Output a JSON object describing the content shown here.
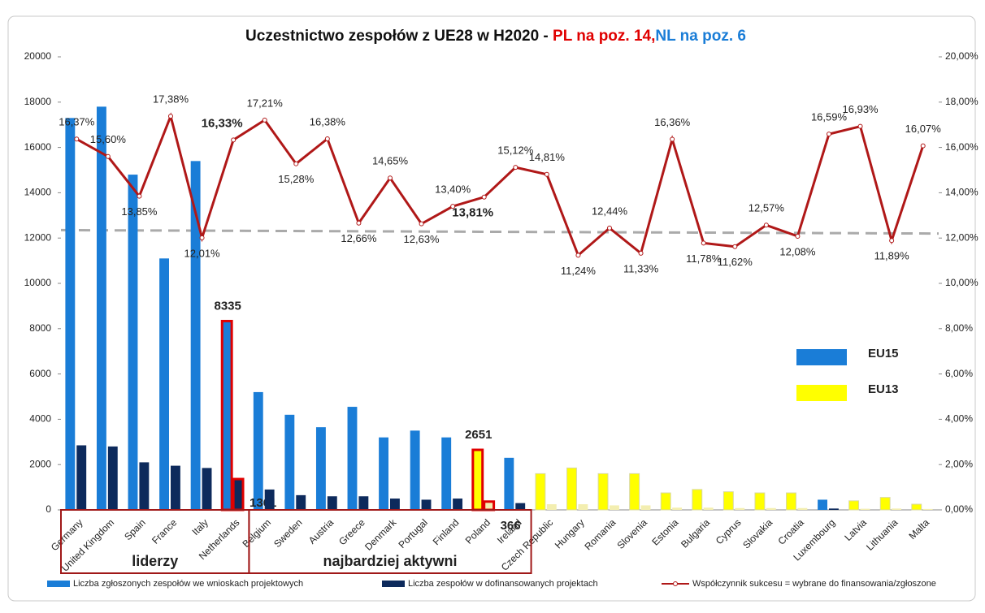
{
  "chart_data": {
    "type": "combo",
    "title": [
      {
        "text": "Uczestnictwo zespołów z UE28 w H2020 - ",
        "color": "#111111"
      },
      {
        "text": "PL na poz. 14,",
        "color": "#e00000"
      },
      {
        "text": "NL na poz. 6",
        "color": "#1a7dd7"
      }
    ],
    "categories": [
      "Germany",
      "United Kingdom",
      "Spain",
      "France",
      "Italy",
      "Netherlands",
      "Belgium",
      "Sweden",
      "Austria",
      "Greece",
      "Denmark",
      "Portugal",
      "Finland",
      "Poland",
      "Ireland",
      "Czech Republic",
      "Hungary",
      "Romania",
      "Slovenia",
      "Estonia",
      "Bulgaria",
      "Cyprus",
      "Slovakia",
      "Croatia",
      "Luxembourg",
      "Latvia",
      "Lithuania",
      "Malta"
    ],
    "category_bloc": [
      "EU15",
      "EU15",
      "EU15",
      "EU15",
      "EU15",
      "EU15",
      "EU15",
      "EU15",
      "EU15",
      "EU15",
      "EU15",
      "EU15",
      "EU15",
      "EU13",
      "EU15",
      "EU13",
      "EU13",
      "EU13",
      "EU13",
      "EU13",
      "EU13",
      "EU13",
      "EU13",
      "EU13",
      "EU15",
      "EU13",
      "EU13",
      "EU13"
    ],
    "blocs": [
      {
        "name": "EU15",
        "colors": [
          "#1a7dd7",
          "#0d2a5c"
        ]
      },
      {
        "name": "EU13",
        "colors": [
          "#ffff00",
          "#f3eeb0"
        ]
      }
    ],
    "series": [
      {
        "name": "Liczba zgłoszonych zespołów we wnioskach projektowych",
        "kind": "bar",
        "values": [
          17300,
          17800,
          14800,
          11100,
          15400,
          8335,
          5200,
          4200,
          3650,
          4550,
          3200,
          3500,
          3200,
          2651,
          2300,
          1600,
          1850,
          1600,
          1600,
          750,
          900,
          800,
          750,
          750,
          450,
          400,
          550,
          250
        ]
      },
      {
        "name": "Liczba zespołów w dofinansowanych projektach",
        "kind": "bar",
        "values": [
          2850,
          2800,
          2100,
          1950,
          1850,
          1361,
          900,
          650,
          600,
          600,
          500,
          450,
          500,
          366,
          300,
          250,
          250,
          200,
          200,
          100,
          100,
          80,
          80,
          80,
          60,
          50,
          60,
          40
        ]
      },
      {
        "name": "Współczynnik sukcesu = wybrane do finansowania/zgłoszone",
        "kind": "line",
        "axis": "y2",
        "color": "#b01818",
        "values": [
          16.37,
          15.6,
          13.85,
          17.38,
          12.01,
          16.33,
          17.21,
          15.28,
          16.38,
          12.66,
          14.65,
          12.63,
          13.4,
          13.81,
          15.12,
          14.81,
          11.24,
          12.44,
          11.33,
          16.36,
          11.78,
          11.62,
          12.57,
          12.08,
          16.59,
          16.93,
          11.89,
          16.07
        ],
        "value_labels": [
          "16,37%",
          "15,60%",
          "13,85%",
          "17,38%",
          "12,01%",
          "16,33%",
          "17,21%",
          "15,28%",
          "16,38%",
          "12,66%",
          "14,65%",
          "12,63%",
          "13,40%",
          "13,81%",
          "15,12%",
          "14,81%",
          "11,24%",
          "12,44%",
          "11,33%",
          "16,36%",
          "11,78%",
          "11,62%",
          "12,57%",
          "12,08%",
          "16,59%",
          "16,93%",
          "11,89%",
          "16,07%"
        ]
      }
    ],
    "highlight": [
      "Netherlands",
      "Poland"
    ],
    "highlight_color": "#e00000",
    "reference_line": {
      "from": 12.35,
      "to": 12.2,
      "axis": "y2",
      "color": "#aaaaaa"
    },
    "groups": [
      {
        "label": "liderzy",
        "start": "Germany",
        "end": "Netherlands"
      },
      {
        "label": "najbardziej aktywni",
        "start": "Belgium",
        "end": "Ireland"
      }
    ],
    "ylim": [
      0,
      20000
    ],
    "yticks": [
      0,
      2000,
      4000,
      6000,
      8000,
      10000,
      12000,
      14000,
      16000,
      18000,
      20000
    ],
    "y2lim": [
      0,
      20
    ],
    "y2ticks": [
      {
        "value": 0,
        "label": "0,00%"
      },
      {
        "value": 2,
        "label": "2,00%"
      },
      {
        "value": 4,
        "label": "4,00%"
      },
      {
        "value": 6,
        "label": "6,00%"
      },
      {
        "value": 8,
        "label": "8,00%"
      },
      {
        "value": 10,
        "label": "10,00%"
      },
      {
        "value": 12,
        "label": "12,00%"
      },
      {
        "value": 14,
        "label": "14,00%"
      },
      {
        "value": 16,
        "label": "16,00%"
      },
      {
        "value": 18,
        "label": "18,00%"
      },
      {
        "value": 20,
        "label": "20,00%"
      }
    ]
  }
}
